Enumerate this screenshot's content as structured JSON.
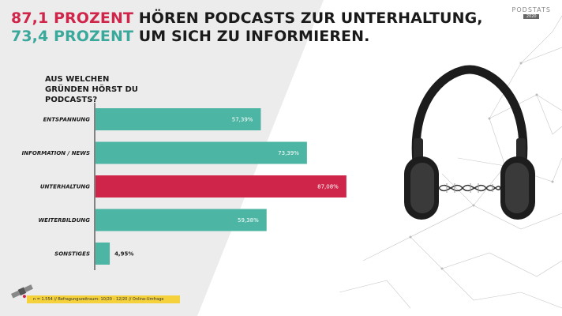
{
  "headline": {
    "line1_highlight": "87,1 PROZENT",
    "line1_rest": " HÖREN PODCASTS ZUR UNTERHALTUNG,",
    "line2_highlight": "73,4 PROZENT",
    "line2_rest": " UM SICH ZU INFORMIEREN."
  },
  "logo": {
    "text": "PODSTATS",
    "sub": "2020"
  },
  "colors": {
    "red": "#d0254a",
    "teal": "#4cb5a3",
    "gray_panel": "#ececec",
    "footer_yellow": "#f5d23c"
  },
  "chart_data": {
    "type": "bar",
    "orientation": "horizontal",
    "title": "AUS WELCHEN GRÜNDEN HÖRST DU PODCASTS?",
    "categories": [
      "ENTSPANNUNG",
      "INFORMATION / NEWS",
      "UNTERHALTUNG",
      "WEITERBILDUNG",
      "SONSTIGES"
    ],
    "values": [
      57.39,
      73.39,
      87.08,
      59.38,
      4.95
    ],
    "value_labels": [
      "57,39%",
      "73,39%",
      "87,08%",
      "59,38%",
      "4,95%"
    ],
    "highlight_index": 2,
    "xlim": [
      0,
      100
    ],
    "grid": false,
    "legend": "none"
  },
  "footer": {
    "text": "n = 1.554 // Befragungszeitraum: 10/20 - 12/20 // Online-Umfrage"
  }
}
